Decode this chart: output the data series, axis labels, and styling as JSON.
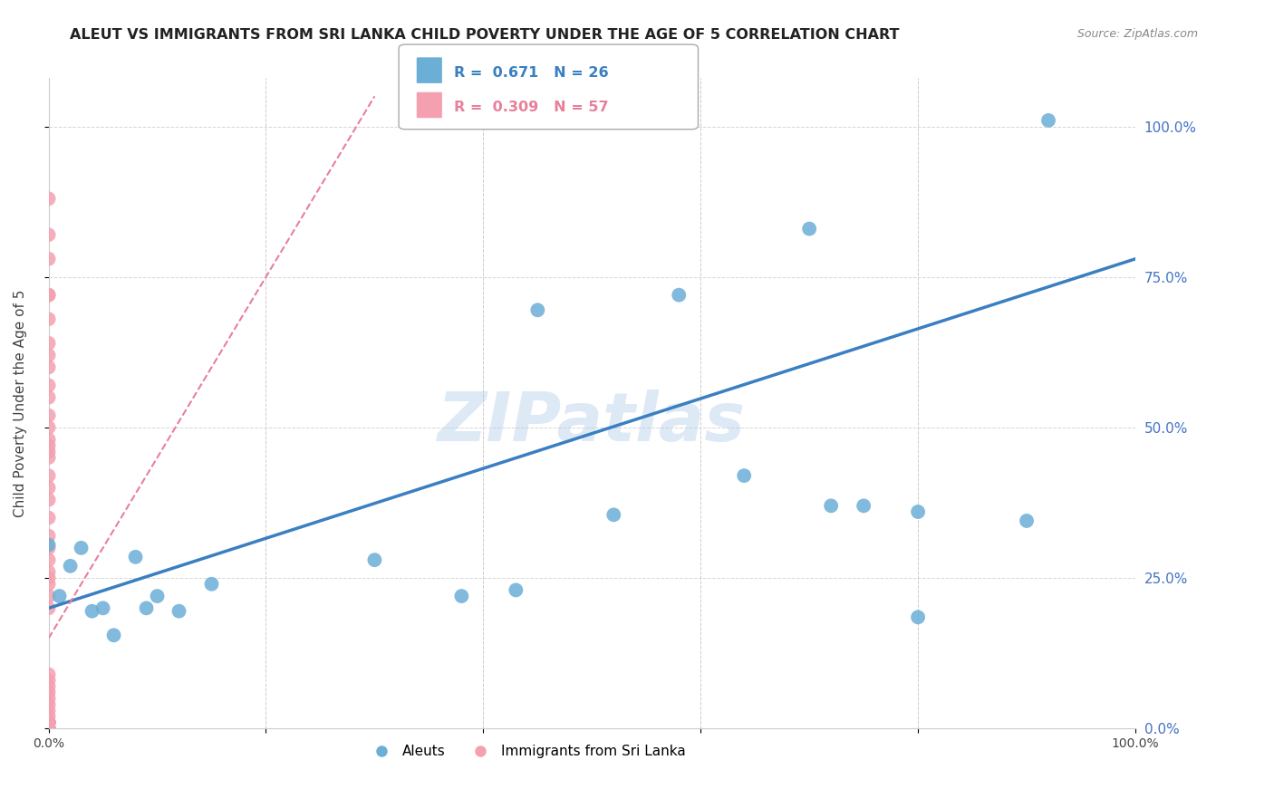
{
  "title": "ALEUT VS IMMIGRANTS FROM SRI LANKA CHILD POVERTY UNDER THE AGE OF 5 CORRELATION CHART",
  "source": "Source: ZipAtlas.com",
  "ylabel": "Child Poverty Under the Age of 5",
  "xmin": 0.0,
  "xmax": 1.0,
  "ymin": 0.0,
  "ymax": 1.08,
  "ytick_labels": [
    "0.0%",
    "25.0%",
    "50.0%",
    "75.0%",
    "100.0%"
  ],
  "ytick_values": [
    0.0,
    0.25,
    0.5,
    0.75,
    1.0
  ],
  "aleut_color": "#6baed6",
  "sri_lanka_color": "#f4a0b0",
  "aleut_R": 0.671,
  "aleut_N": 26,
  "sri_lanka_R": 0.309,
  "sri_lanka_N": 57,
  "aleut_points_x": [
    0.0,
    0.01,
    0.02,
    0.03,
    0.04,
    0.05,
    0.06,
    0.08,
    0.09,
    0.1,
    0.12,
    0.15,
    0.3,
    0.38,
    0.43,
    0.45,
    0.52,
    0.58,
    0.64,
    0.72,
    0.75,
    0.8,
    0.9,
    0.92,
    0.7,
    0.8
  ],
  "aleut_points_y": [
    0.305,
    0.22,
    0.27,
    0.3,
    0.195,
    0.2,
    0.155,
    0.285,
    0.2,
    0.22,
    0.195,
    0.24,
    0.28,
    0.22,
    0.23,
    0.695,
    0.355,
    0.72,
    0.42,
    0.37,
    0.37,
    0.185,
    0.345,
    1.01,
    0.83,
    0.36
  ],
  "sri_lanka_points_x": [
    0.0,
    0.0,
    0.0,
    0.0,
    0.0,
    0.0,
    0.0,
    0.0,
    0.0,
    0.0,
    0.0,
    0.0,
    0.0,
    0.0,
    0.0,
    0.0,
    0.0,
    0.0,
    0.0,
    0.0,
    0.0,
    0.0,
    0.0,
    0.0,
    0.0,
    0.0,
    0.0,
    0.0,
    0.0,
    0.0,
    0.0,
    0.0,
    0.0,
    0.0,
    0.0,
    0.0,
    0.0,
    0.0,
    0.0,
    0.0,
    0.0,
    0.0,
    0.0,
    0.0,
    0.0,
    0.0,
    0.0,
    0.0,
    0.0,
    0.0,
    0.0,
    0.0,
    0.0,
    0.0,
    0.0,
    0.0,
    0.0
  ],
  "sri_lanka_points_y": [
    0.0,
    0.0,
    0.0,
    0.0,
    0.0,
    0.0,
    0.0,
    0.0,
    0.0,
    0.0,
    0.01,
    0.01,
    0.01,
    0.01,
    0.01,
    0.01,
    0.01,
    0.01,
    0.01,
    0.01,
    0.02,
    0.03,
    0.04,
    0.05,
    0.06,
    0.07,
    0.08,
    0.09,
    0.2,
    0.22,
    0.24,
    0.25,
    0.26,
    0.28,
    0.3,
    0.32,
    0.35,
    0.38,
    0.4,
    0.42,
    0.45,
    0.46,
    0.47,
    0.48,
    0.5,
    0.52,
    0.55,
    0.57,
    0.6,
    0.62,
    0.64,
    0.68,
    0.72,
    0.78,
    0.82,
    0.88,
    0.72
  ],
  "aleut_line_x": [
    0.0,
    1.0
  ],
  "aleut_line_y": [
    0.2,
    0.78
  ],
  "sri_lanka_line_x": [
    0.0,
    0.3
  ],
  "sri_lanka_line_y": [
    0.15,
    1.05
  ],
  "watermark": "ZIPatlas",
  "background_color": "#ffffff",
  "grid_color": "#cccccc",
  "title_color": "#222222",
  "axis_label_color": "#444444"
}
